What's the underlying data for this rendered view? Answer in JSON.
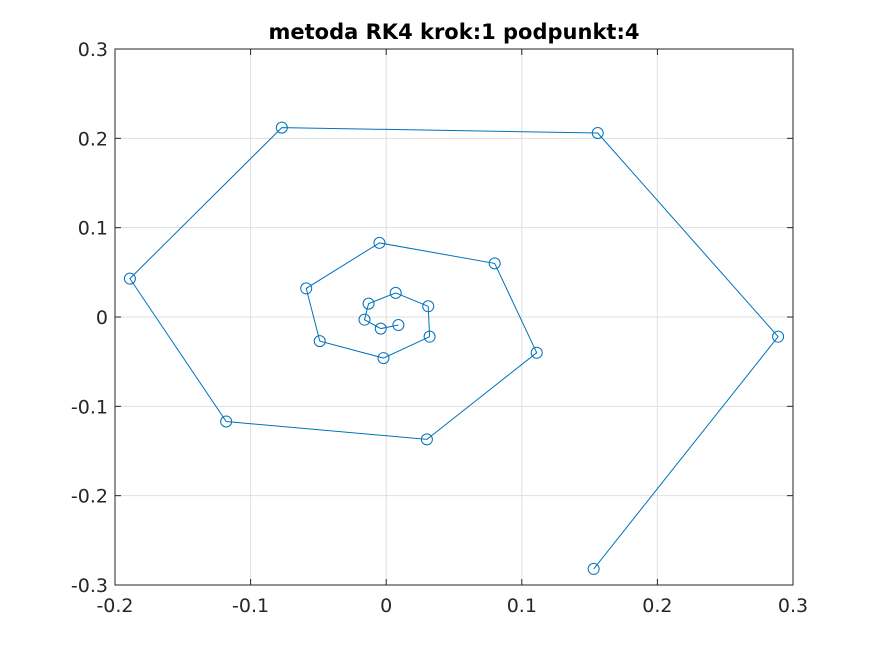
{
  "chart_data": {
    "type": "line",
    "title": "metoda RK4 krok:1 podpunkt:4",
    "xlabel": "",
    "ylabel": "",
    "xlim": [
      -0.2,
      0.3
    ],
    "ylim": [
      -0.3,
      0.3
    ],
    "grid": true,
    "markers": "circle",
    "x_ticks": [
      -0.2,
      -0.1,
      0,
      0.1,
      0.2,
      0.3
    ],
    "x_tick_labels": [
      "-0.2",
      "-0.1",
      "0",
      "0.1",
      "0.2",
      "0.3"
    ],
    "y_ticks": [
      -0.3,
      -0.2,
      -0.1,
      0,
      0.1,
      0.2,
      0.3
    ],
    "y_tick_labels": [
      "-0.3",
      "-0.2",
      "-0.1",
      "0",
      "0.1",
      "0.2",
      "0.3"
    ],
    "series": [
      {
        "color": "#0072bd",
        "x": [
          0.153,
          0.289,
          0.156,
          -0.077,
          -0.189,
          -0.118,
          0.03,
          0.111,
          0.08,
          -0.005,
          -0.059,
          -0.049,
          -0.002,
          0.032,
          0.031,
          0.007,
          -0.013,
          -0.016,
          -0.004,
          0.009
        ],
        "y": [
          -0.282,
          -0.022,
          0.206,
          0.212,
          0.043,
          -0.117,
          -0.137,
          -0.04,
          0.06,
          0.083,
          0.032,
          -0.027,
          -0.046,
          -0.022,
          0.012,
          0.027,
          0.015,
          -0.003,
          -0.013,
          -0.009
        ]
      }
    ]
  }
}
